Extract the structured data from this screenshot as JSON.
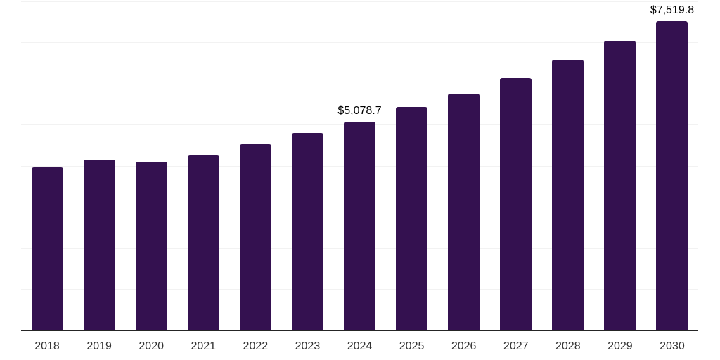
{
  "chart_data": {
    "type": "bar",
    "title": "",
    "xlabel": "",
    "ylabel": "",
    "categories": [
      "2018",
      "2019",
      "2020",
      "2021",
      "2022",
      "2023",
      "2024",
      "2025",
      "2026",
      "2027",
      "2028",
      "2029",
      "2030"
    ],
    "values": [
      3960,
      4155,
      4100,
      4260,
      4525,
      4800,
      5078.7,
      5425,
      5760,
      6135,
      6575,
      7040,
      7519.8
    ],
    "bar_labels": [
      "",
      "",
      "",
      "",
      "",
      "",
      "$5,078.7",
      "",
      "",
      "",
      "",
      "",
      "$7,519.8"
    ],
    "ylim": [
      0,
      8000
    ],
    "grid_step": 1000,
    "grid": "horizontal-only",
    "legend": "none",
    "y_axis_labels_visible": false
  },
  "colors": {
    "background": "#ffffff",
    "bar": "#341150",
    "gridline": "#f2f2f2",
    "axis_line": "#252525",
    "tick_label": "#333333",
    "value_label": "#000000"
  }
}
